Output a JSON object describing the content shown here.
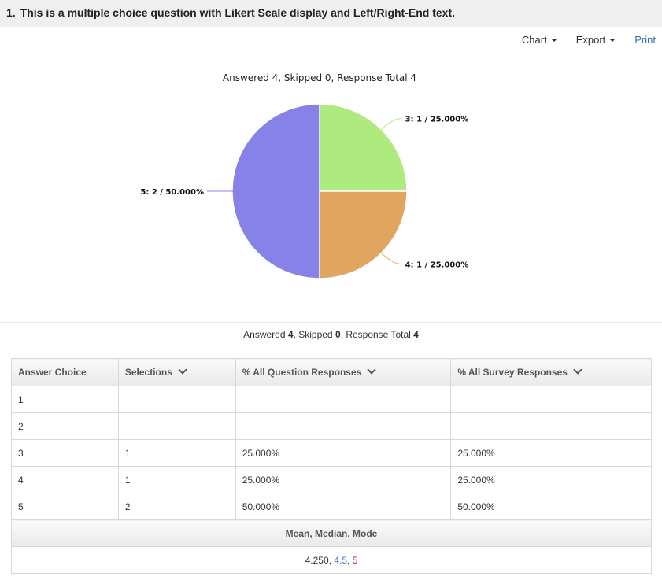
{
  "question": {
    "number": "1.",
    "text": "This is a multiple choice question with Likert Scale display and Left/Right-End text."
  },
  "toolbar": {
    "chart": "Chart",
    "export": "Export",
    "print": "Print"
  },
  "chart_data": {
    "type": "pie",
    "title": "Answered 4, Skipped 0, Response Total 4",
    "slices": [
      {
        "label": "3: 1 / 25.000%",
        "category": "3",
        "value": 1,
        "percent": 25.0,
        "color": "#aeea7d"
      },
      {
        "label": "4: 1 / 25.000%",
        "category": "4",
        "value": 1,
        "percent": 25.0,
        "color": "#e0a65f"
      },
      {
        "label": "5: 2 / 50.000%",
        "category": "5",
        "value": 2,
        "percent": 50.0,
        "color": "#8782e8"
      }
    ]
  },
  "summary": {
    "answered_label": "Answered",
    "answered": "4",
    "skipped_label": "Skipped",
    "skipped": "0",
    "total_label": "Response Total",
    "total": "4"
  },
  "table": {
    "headers": {
      "answer_choice": "Answer Choice",
      "selections": "Selections",
      "pct_question": "% All Question Responses",
      "pct_survey": "% All Survey Responses"
    },
    "rows": [
      {
        "choice": "1",
        "selections": "",
        "pct_question": "",
        "pct_survey": ""
      },
      {
        "choice": "2",
        "selections": "",
        "pct_question": "",
        "pct_survey": ""
      },
      {
        "choice": "3",
        "selections": "1",
        "pct_question": "25.000%",
        "pct_survey": "25.000%"
      },
      {
        "choice": "4",
        "selections": "1",
        "pct_question": "25.000%",
        "pct_survey": "25.000%"
      },
      {
        "choice": "5",
        "selections": "2",
        "pct_question": "50.000%",
        "pct_survey": "50.000%"
      }
    ],
    "stats_label": "Mean, Median, Mode",
    "stats": {
      "mean": "4.250",
      "median": "4.5",
      "mode": "5"
    }
  }
}
